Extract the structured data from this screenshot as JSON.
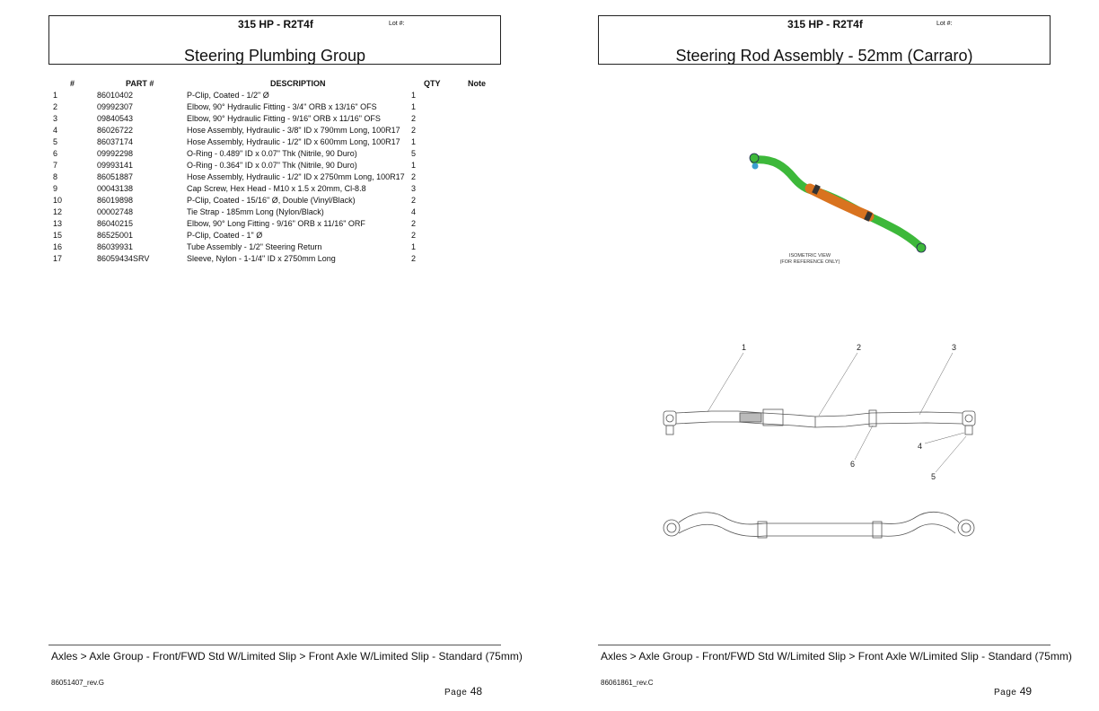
{
  "left_page": {
    "model": "315 HP - R2T4f",
    "lot_label": "Lot #:",
    "title": "Steering Plumbing Group",
    "table": {
      "headers": {
        "num": "#",
        "part": "PART #",
        "desc": "DESCRIPTION",
        "qty": "QTY",
        "note": "Note"
      },
      "rows": [
        {
          "num": "1",
          "part": "86010402",
          "desc": "P-Clip, Coated - 1/2\" Ø",
          "qty": "1"
        },
        {
          "num": "2",
          "part": "09992307",
          "desc": "Elbow, 90° Hydraulic Fitting - 3/4\" ORB x 13/16\" OFS",
          "qty": "1"
        },
        {
          "num": "3",
          "part": "09840543",
          "desc": "Elbow, 90° Hydraulic Fitting - 9/16\" ORB x 11/16\" OFS",
          "qty": "2"
        },
        {
          "num": "4",
          "part": "86026722",
          "desc": "Hose Assembly, Hydraulic - 3/8\" ID x 790mm Long, 100R17",
          "qty": "2"
        },
        {
          "num": "5",
          "part": "86037174",
          "desc": "Hose Assembly, Hydraulic - 1/2\" ID x 600mm Long, 100R17",
          "qty": "1"
        },
        {
          "num": "6",
          "part": "09992298",
          "desc": "O-Ring - 0.489\" ID x 0.07\" Thk (Nitrile, 90 Duro)",
          "qty": "5"
        },
        {
          "num": "7",
          "part": "09993141",
          "desc": "O-Ring - 0.364\" ID x 0.07\" Thk (Nitrile, 90 Duro)",
          "qty": "1"
        },
        {
          "num": "8",
          "part": "86051887",
          "desc": "Hose Assembly, Hydraulic - 1/2\" ID x 2750mm Long, 100R17",
          "qty": "2"
        },
        {
          "num": "9",
          "part": "00043138",
          "desc": "Cap Screw, Hex Head - M10 x 1.5 x 20mm, Cl-8.8",
          "qty": "3"
        },
        {
          "num": "10",
          "part": "86019898",
          "desc": "P-Clip, Coated - 15/16\" Ø, Double (Vinyl/Black)",
          "qty": "2"
        },
        {
          "num": "12",
          "part": "00002748",
          "desc": "Tie Strap - 185mm Long (Nylon/Black)",
          "qty": "4"
        },
        {
          "num": "13",
          "part": "86040215",
          "desc": "Elbow, 90° Long Fitting - 9/16\" ORB x 11/16\" ORF",
          "qty": "2"
        },
        {
          "num": "15",
          "part": "86525001",
          "desc": "P-Clip, Coated - 1\" Ø",
          "qty": "2"
        },
        {
          "num": "16",
          "part": "86039931",
          "desc": "Tube Assembly - 1/2\" Steering Return",
          "qty": "1"
        },
        {
          "num": "17",
          "part": "86059434SRV",
          "desc": "Sleeve, Nylon - 1-1/4\" ID x 2750mm Long",
          "qty": "2"
        }
      ]
    },
    "breadcrumb": "Axles > Axle Group - Front/FWD Std W/Limited Slip > Front Axle W/Limited Slip - Standard (75mm)",
    "doc_number": "86051407_rev.G",
    "page_label": "Page",
    "page_number": "48"
  },
  "right_page": {
    "model": "315 HP - R2T4f",
    "lot_label": "Lot #:",
    "title": "Steering Rod Assembly - 52mm (Carraro)",
    "iso_label_line1": "ISOMETRIC VIEW",
    "iso_label_line2": "(FOR REFERENCE ONLY)",
    "callouts": [
      "1",
      "2",
      "3",
      "4",
      "5",
      "6"
    ],
    "colors": {
      "rod_green": "#3db83a",
      "rod_orange": "#d9731f",
      "fitting_blue": "#3a9fd0"
    },
    "breadcrumb": "Axles > Axle Group - Front/FWD Std W/Limited Slip > Front Axle W/Limited Slip - Standard (75mm)",
    "doc_number": "86061861_rev.C",
    "page_label": "Page",
    "page_number": "49"
  }
}
